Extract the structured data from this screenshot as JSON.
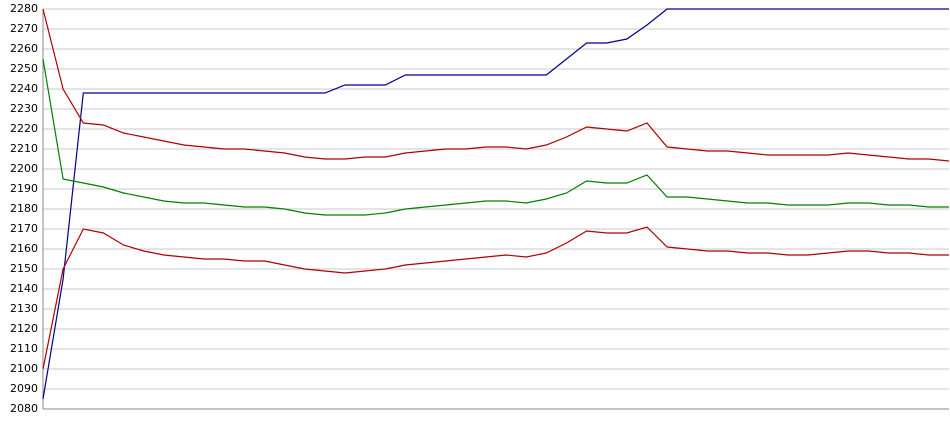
{
  "chart_data": {
    "type": "line",
    "categories": [
      null,
      null,
      null,
      null,
      null,
      null,
      null,
      null,
      null,
      null,
      null,
      null,
      null,
      null,
      null,
      null,
      null,
      null,
      null,
      null,
      null,
      null,
      null,
      null,
      null,
      null,
      null,
      null,
      null,
      null,
      null,
      null,
      null,
      null,
      null,
      null,
      null,
      null,
      null,
      null,
      null,
      null,
      null,
      null,
      null,
      null
    ],
    "series": [
      {
        "color": "#00008b",
        "values": [
          2085,
          2145,
          2238,
          2238,
          2238,
          2238,
          2238,
          2238,
          2238,
          2238,
          2238,
          2238,
          2238,
          2238,
          2238,
          2242,
          2242,
          2242,
          2247,
          2247,
          2247,
          2247,
          2247,
          2247,
          2247,
          2247,
          2255,
          2263,
          2263,
          2265,
          2272,
          2280,
          2280,
          2280,
          2280,
          2280,
          2280,
          2280,
          2280,
          2280,
          2280,
          2280,
          2280,
          2280,
          2280,
          2280
        ]
      },
      {
        "color": "#b00000",
        "values": [
          2280,
          2240,
          2223,
          2222,
          2218,
          2216,
          2214,
          2212,
          2211,
          2210,
          2210,
          2209,
          2208,
          2206,
          2205,
          2205,
          2206,
          2206,
          2208,
          2209,
          2210,
          2210,
          2211,
          2211,
          2210,
          2212,
          2216,
          2221,
          2220,
          2219,
          2223,
          2211,
          2210,
          2209,
          2209,
          2208,
          2207,
          2207,
          2207,
          2207,
          2208,
          2207,
          2206,
          2205,
          2205,
          2204
        ]
      },
      {
        "color": "#008000",
        "values": [
          2255,
          2195,
          2193,
          2191,
          2188,
          2186,
          2184,
          2183,
          2183,
          2182,
          2181,
          2181,
          2180,
          2178,
          2177,
          2177,
          2177,
          2178,
          2180,
          2181,
          2182,
          2183,
          2184,
          2184,
          2183,
          2185,
          2188,
          2194,
          2193,
          2193,
          2197,
          2186,
          2186,
          2185,
          2184,
          2183,
          2183,
          2182,
          2182,
          2182,
          2183,
          2183,
          2182,
          2182,
          2181,
          2181
        ]
      },
      {
        "color": "#b00000",
        "values": [
          2100,
          2150,
          2170,
          2168,
          2162,
          2159,
          2157,
          2156,
          2155,
          2155,
          2154,
          2154,
          2152,
          2150,
          2149,
          2148,
          2149,
          2150,
          2152,
          2153,
          2154,
          2155,
          2156,
          2157,
          2156,
          2158,
          2163,
          2169,
          2168,
          2168,
          2171,
          2161,
          2160,
          2159,
          2159,
          2158,
          2158,
          2157,
          2157,
          2158,
          2159,
          2159,
          2158,
          2158,
          2157,
          2157
        ]
      }
    ],
    "ylim": [
      2080,
      2280
    ],
    "yticks": [
      2080,
      2090,
      2100,
      2110,
      2120,
      2130,
      2140,
      2150,
      2160,
      2170,
      2180,
      2190,
      2200,
      2210,
      2220,
      2230,
      2240,
      2250,
      2260,
      2270,
      2280
    ],
    "grid": true
  }
}
